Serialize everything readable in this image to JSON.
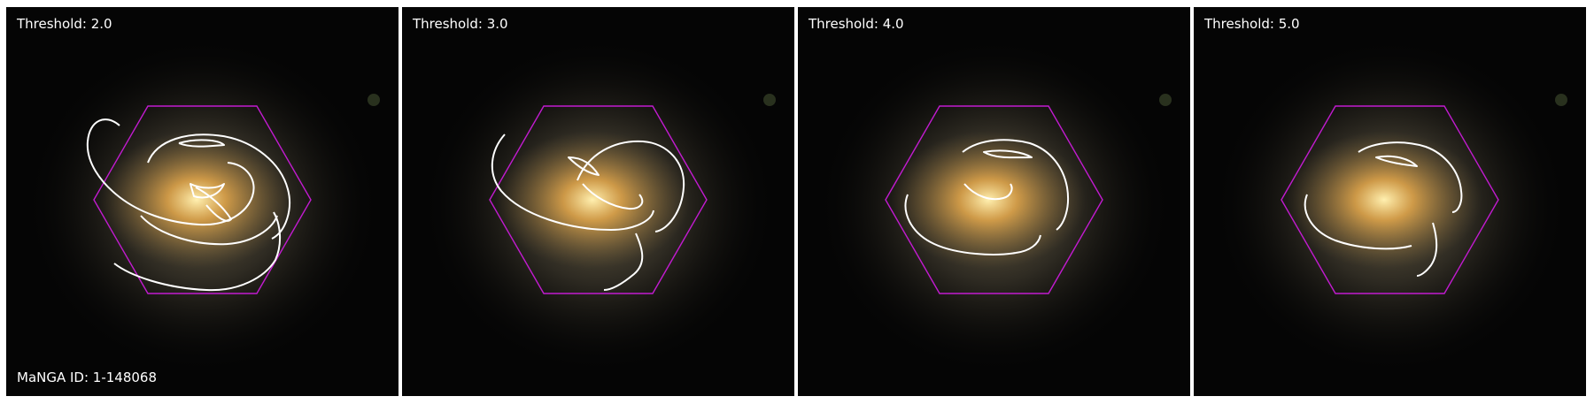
{
  "figure": {
    "panels": [
      {
        "threshold_label": "Threshold: 2.0"
      },
      {
        "threshold_label": "Threshold: 3.0"
      },
      {
        "threshold_label": "Threshold: 4.0"
      },
      {
        "threshold_label": "Threshold: 5.0"
      }
    ],
    "manga_id_label": "MaNGA ID: 1-148068",
    "colors": {
      "hexagon": "#c21bd0",
      "contour": "#ffffff",
      "background": "#050505",
      "galaxy_core": "#ffd77a"
    }
  }
}
